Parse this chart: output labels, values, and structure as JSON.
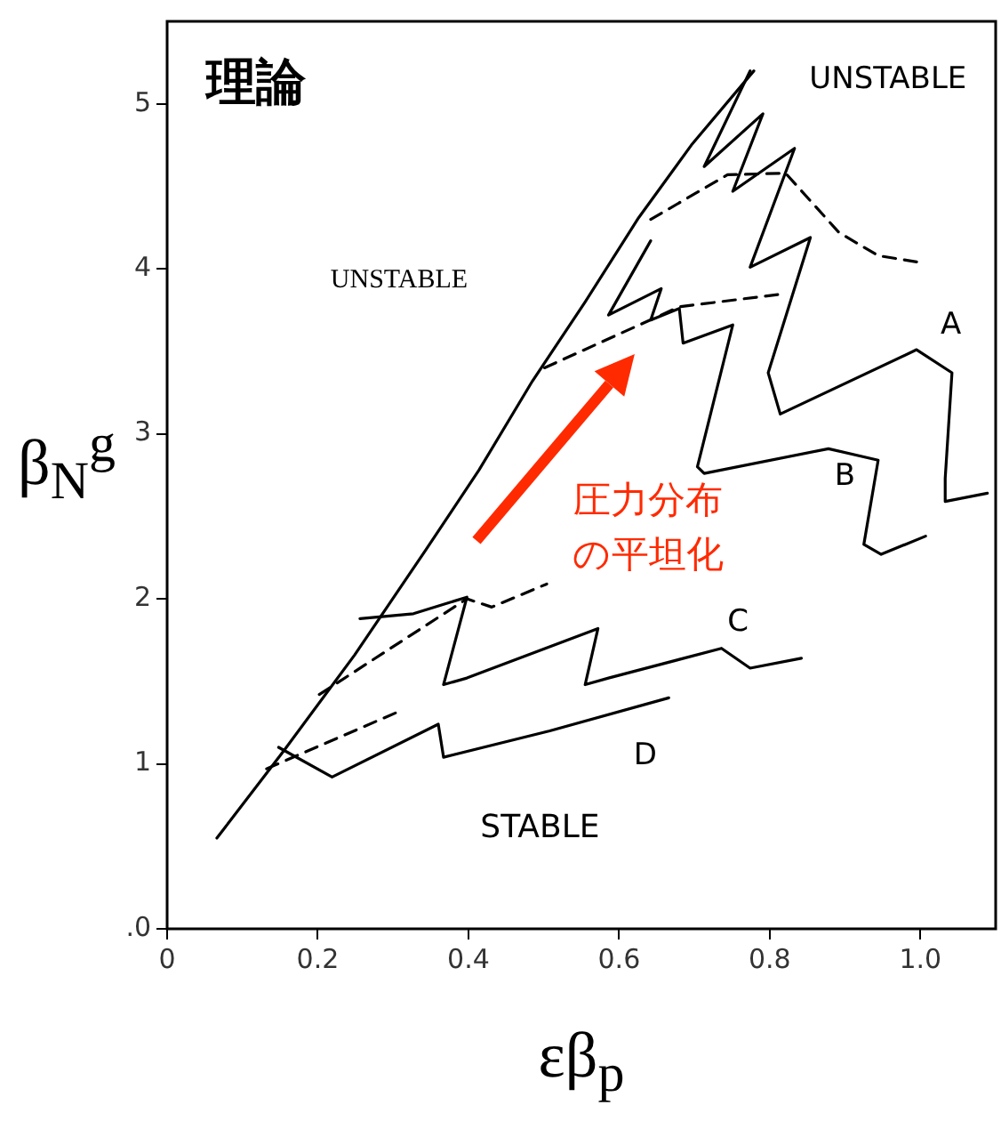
{
  "chart_data": {
    "type": "line",
    "title": "理論",
    "xlabel": "εβ$_{p}$",
    "ylabel": "β$_{N}$$^{g}$",
    "xlim": [
      0,
      1.1
    ],
    "ylim": [
      0,
      5.5
    ],
    "xticks": [
      0,
      0.2,
      0.4,
      0.6,
      0.8,
      {
        "value": 1,
        "label": "1.0"
      }
    ],
    "yticks": [
      {
        "value": 0,
        "label": ".0"
      },
      1,
      2,
      3,
      4,
      5
    ],
    "series": [
      {
        "color": "#000000",
        "line_style": "solid",
        "x": [
          0.066,
          0.155,
          0.249,
          0.344,
          0.414,
          0.485,
          0.555,
          0.626,
          0.696,
          0.779
        ],
        "values": [
          0.55,
          1.08,
          1.66,
          2.3,
          2.78,
          3.32,
          3.8,
          4.31,
          4.75,
          5.2
        ]
      },
      {
        "name": "A",
        "color": "#000000",
        "line_style": "solid",
        "x": [
          0.774,
          0.713,
          0.791,
          0.751,
          0.833,
          0.774,
          0.854,
          0.798,
          0.814,
          0.995,
          1.042,
          1.033,
          1.033,
          1.089
        ],
        "values": [
          5.2,
          4.62,
          4.94,
          4.47,
          4.73,
          4.01,
          4.19,
          3.37,
          3.12,
          3.51,
          3.37,
          2.73,
          2.59,
          2.64
        ]
      },
      {
        "color": "#000000",
        "line_style": "dashed",
        "x": [
          0.642,
          0.744,
          0.821,
          0.892,
          0.944,
          0.998
        ],
        "values": [
          4.3,
          4.57,
          4.58,
          4.22,
          4.08,
          4.04
        ]
      },
      {
        "name": "B",
        "color": "#000000",
        "line_style": "solid",
        "x": [
          0.642,
          0.586,
          0.656,
          0.642,
          0.68,
          0.685,
          0.751,
          0.704,
          0.713,
          0.878,
          0.944,
          0.925,
          0.948,
          1.007
        ],
        "values": [
          4.17,
          3.72,
          3.88,
          3.69,
          3.76,
          3.55,
          3.66,
          2.8,
          2.76,
          2.91,
          2.84,
          2.33,
          2.27,
          2.38
        ]
      },
      {
        "color": "#000000",
        "line_style": "dashed",
        "x": [
          0.501,
          0.68,
          0.821
        ],
        "values": [
          3.4,
          3.77,
          3.85
        ]
      },
      {
        "name": "C",
        "color": "#000000",
        "line_style": "solid",
        "x": [
          0.256,
          0.327,
          0.398,
          0.367,
          0.398,
          0.572,
          0.555,
          0.586,
          0.736,
          0.774,
          0.842
        ],
        "values": [
          1.88,
          1.91,
          2.01,
          1.48,
          1.52,
          1.82,
          1.48,
          1.52,
          1.7,
          1.58,
          1.64
        ]
      },
      {
        "color": "#000000",
        "line_style": "dashed",
        "x": [
          0.202,
          0.398,
          0.431,
          0.504
        ],
        "values": [
          1.42,
          2.0,
          1.95,
          2.09
        ]
      },
      {
        "name": "D",
        "color": "#000000",
        "line_style": "solid",
        "x": [
          0.148,
          0.219,
          0.36,
          0.367,
          0.508,
          0.666
        ],
        "values": [
          1.1,
          0.92,
          1.24,
          1.04,
          1.2,
          1.4
        ]
      },
      {
        "color": "#000000",
        "line_style": "dashed",
        "x": [
          0.132,
          0.304
        ],
        "values": [
          0.97,
          1.31
        ]
      }
    ],
    "annotations": [
      "UNSTABLE",
      "UNSTABLE",
      "STABLE",
      "圧力分布",
      "の平坦化"
    ]
  }
}
